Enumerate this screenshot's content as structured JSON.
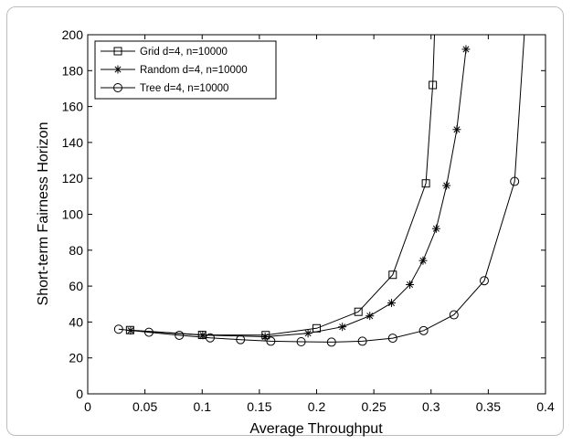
{
  "chart_data": {
    "type": "line",
    "title": "",
    "xlabel": "Average Throughput",
    "ylabel": "Short-term Fairness Horizon",
    "xlim": [
      0,
      0.4
    ],
    "ylim": [
      0,
      200
    ],
    "xticks": [
      "0",
      "0.05",
      "0.1",
      "0.15",
      "0.2",
      "0.25",
      "0.3",
      "0.35",
      "0.4"
    ],
    "yticks": [
      "0",
      "20",
      "40",
      "60",
      "80",
      "100",
      "120",
      "140",
      "160",
      "180",
      "200"
    ],
    "grid": false,
    "legend_position": "top-left",
    "series": [
      {
        "name": "Grid d=4, n=10000",
        "marker": "square",
        "x": [
          0.037,
          0.1,
          0.1555,
          0.2,
          0.2365,
          0.2665,
          0.2955,
          0.3015,
          0.303
        ],
        "y": [
          35.5,
          32.8,
          32.7,
          36.5,
          45.7,
          66.3,
          117.2,
          172,
          200
        ]
      },
      {
        "name": "Random d=4, n=10000",
        "marker": "asterisk",
        "x": [
          0.0375,
          0.1005,
          0.155,
          0.1925,
          0.2225,
          0.2465,
          0.2655,
          0.2815,
          0.293,
          0.3045,
          0.3135,
          0.3225,
          0.3305
        ],
        "y": [
          35.3,
          32.7,
          31.8,
          33.7,
          37.3,
          43.4,
          50.6,
          60.8,
          74.2,
          92,
          116,
          147.2,
          191.9
        ]
      },
      {
        "name": "Tree d=4, n=10000",
        "marker": "circle",
        "x": [
          0.027,
          0.0535,
          0.08,
          0.107,
          0.1335,
          0.16,
          0.1865,
          0.213,
          0.24,
          0.2665,
          0.2935,
          0.32,
          0.3465,
          0.373,
          0.3815
        ],
        "y": [
          36,
          34.3,
          32.6,
          31.2,
          30.2,
          29.3,
          29,
          28.8,
          29.3,
          31,
          35.2,
          44,
          63,
          118.3,
          200
        ]
      }
    ]
  }
}
